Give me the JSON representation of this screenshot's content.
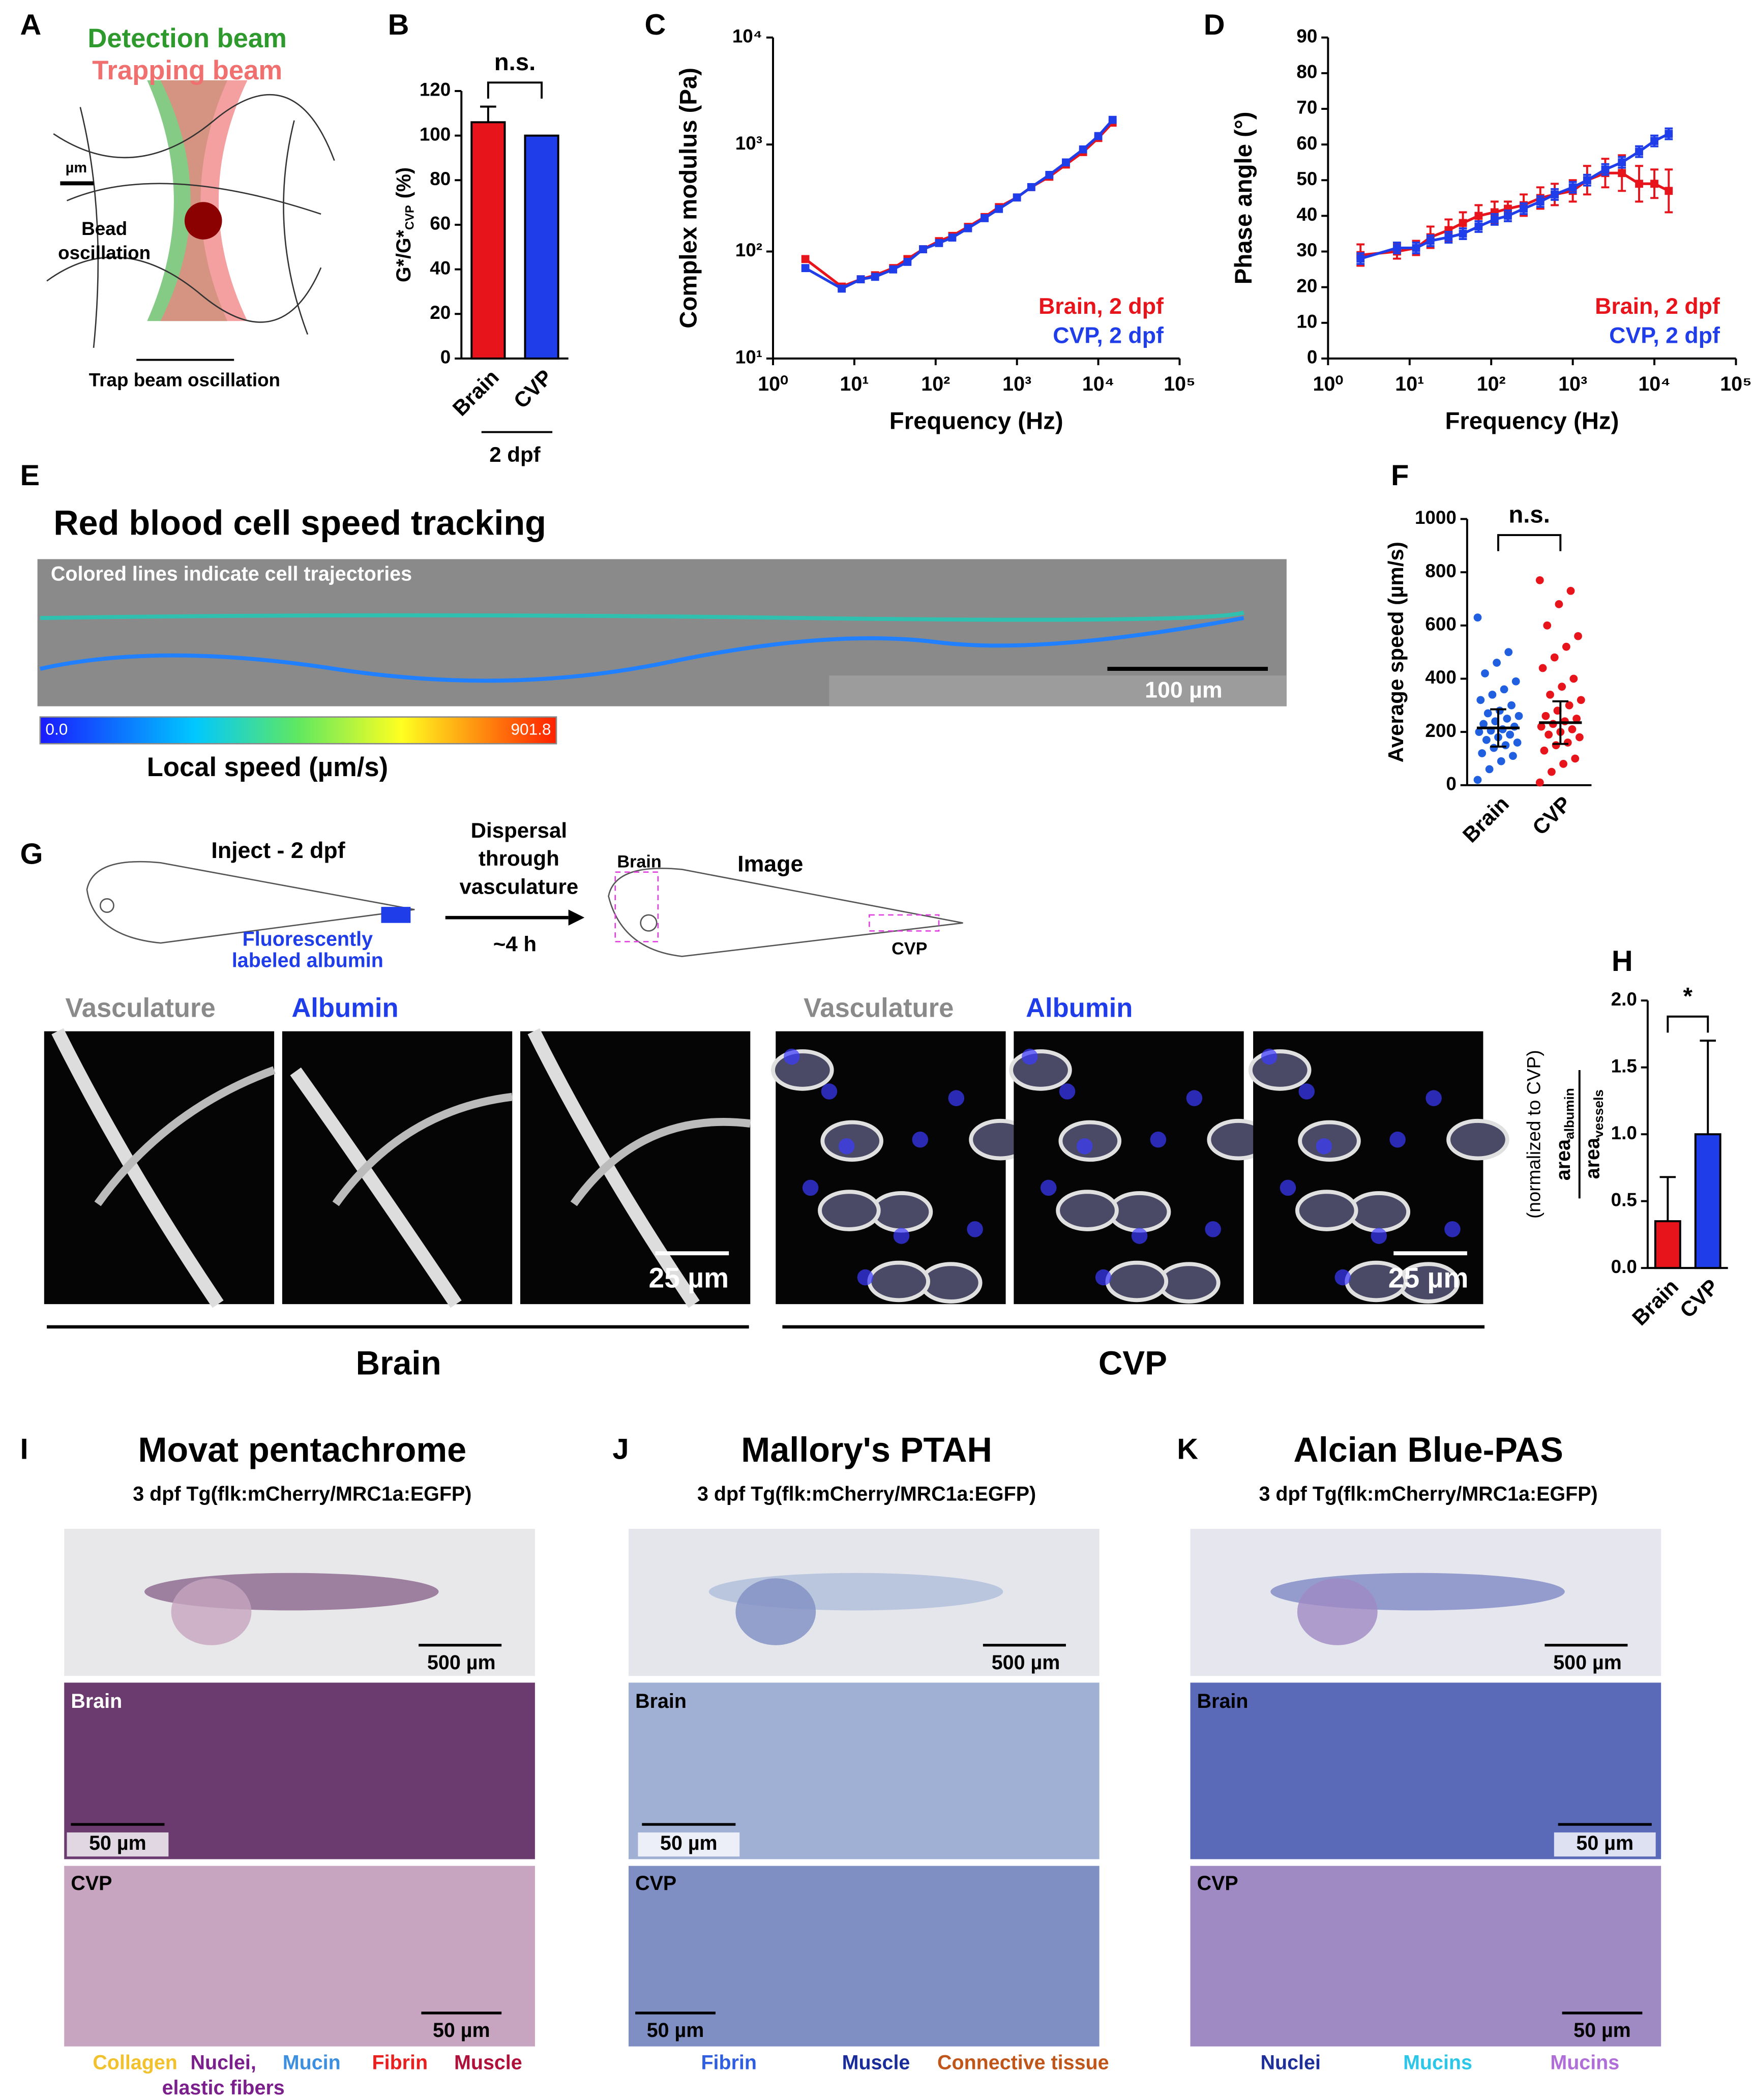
{
  "panel_labels": [
    "A",
    "B",
    "C",
    "D",
    "E",
    "F",
    "G",
    "H",
    "I",
    "J",
    "K"
  ],
  "panel_a": {
    "detection_beam": "Detection beam",
    "trapping_beam": "Trapping beam",
    "scale": "µm",
    "bead": [
      "Bead",
      "oscillation"
    ],
    "trap_oscillation": "Trap beam oscillation"
  },
  "panel_e": {
    "title": "Red blood cell speed tracking",
    "overlay": "Colored lines indicate cell trajectories",
    "scale_bar": "100 µm",
    "colorbar": {
      "min": {
        "value": 0,
        "label": "0.0"
      },
      "max": 901.8
    },
    "colorbar_label": "Local speed (µm/s)"
  },
  "panel_g": {
    "inject": "Inject - 2 dpf",
    "albumin_label": [
      "Fluorescently",
      "labeled albumin"
    ],
    "dispersal": [
      "Dispersal",
      "through",
      "vasculature"
    ],
    "time": "~4 h",
    "image": "Image",
    "roi_brain": "Brain",
    "roi_cvp": "CVP",
    "channel_vasculature": "Vasculature",
    "channel_albumin": "Albumin",
    "scale_bar": "25 µm",
    "group_brain": "Brain",
    "group_cvp": "CVP"
  },
  "histology": [
    {
      "title": "Movat pentachrome",
      "subtitle": "3 dpf Tg(flk:mCherry/MRC1a:EGFP)",
      "scale_whole": "500 µm",
      "region_brain": "Brain",
      "scale_brain": "50 µm",
      "region_cvp": "CVP",
      "scale_cvp": "50 µm",
      "legend": [
        {
          "text": "Collagen",
          "color": "#f2c12e"
        },
        {
          "text": [
            "Nuclei,",
            "elastic fibers"
          ],
          "color": "#7b1f8c"
        },
        {
          "text": "Mucin",
          "color": "#3d8fe0"
        },
        {
          "text": "Fibrin",
          "color": "#e8201f"
        },
        {
          "text": "Muscle",
          "color": "#b0113a"
        }
      ]
    },
    {
      "title": "Mallory's PTAH",
      "subtitle": "3 dpf Tg(flk:mCherry/MRC1a:EGFP)",
      "scale_whole": "500 µm",
      "region_brain": "Brain",
      "scale_brain": "50 µm",
      "region_cvp": "CVP",
      "scale_cvp": "50 µm",
      "legend": [
        {
          "text": "Fibrin",
          "color": "#2f5fe0"
        },
        {
          "text": "Muscle",
          "color": "#1a2b9a"
        },
        {
          "text": "Connective tissue",
          "color": "#c0561a"
        }
      ]
    },
    {
      "title": "Alcian Blue-PAS",
      "subtitle": "3 dpf Tg(flk:mCherry/MRC1a:EGFP)",
      "scale_whole": "500 µm",
      "region_brain": "Brain",
      "scale_brain": "50 µm",
      "region_cvp": "CVP",
      "scale_cvp": "50 µm",
      "legend": [
        {
          "text": "Nuclei",
          "color": "#1f2f9a"
        },
        {
          "text": "Mucins",
          "color": "#2cc6e8"
        },
        {
          "text": "Mucins",
          "color": "#b06fd8"
        }
      ]
    }
  ],
  "chart_data": [
    {
      "type": "bar",
      "ylabel": {
        "main": "G*/G*",
        "sub": "CVP",
        "unit": "(%)"
      },
      "categories": [
        "Brain",
        "CVP"
      ],
      "values": [
        106,
        100
      ],
      "errors": [
        7,
        null
      ],
      "colors": [
        "#e8141b",
        "#1f3de8"
      ],
      "ylim": [
        0,
        120
      ],
      "yticks": [
        0,
        20,
        40,
        60,
        80,
        100,
        120
      ],
      "annotation": "n.s.",
      "group_label": "2 dpf"
    },
    {
      "type": "line",
      "xlabel": "Frequency (Hz)",
      "ylabel": "Complex modulus (Pa)",
      "x": [
        2.5,
        7,
        12,
        18,
        30,
        45,
        70,
        110,
        160,
        250,
        400,
        600,
        1000,
        1500,
        2500,
        4000,
        6500,
        10000,
        15000
      ],
      "series": [
        {
          "name": "Brain, 2 dpf",
          "color": "#e8141b",
          "values": [
            85,
            47,
            55,
            60,
            70,
            85,
            105,
            125,
            140,
            170,
            210,
            260,
            320,
            400,
            500,
            650,
            850,
            1150,
            1600
          ]
        },
        {
          "name": "CVP, 2 dpf",
          "color": "#1f3de8",
          "values": [
            70,
            45,
            55,
            58,
            68,
            80,
            105,
            120,
            135,
            165,
            205,
            250,
            320,
            400,
            520,
            680,
            900,
            1200,
            1700
          ]
        }
      ],
      "xlim": [
        1,
        100000
      ],
      "xticks": [
        {
          "value": 1,
          "label": "10⁰"
        },
        {
          "value": 10,
          "label": "10¹"
        },
        {
          "value": 100,
          "label": "10²"
        },
        {
          "value": 1000,
          "label": "10³"
        },
        {
          "value": 10000,
          "label": "10⁴"
        },
        {
          "value": 100000,
          "label": "10⁵"
        }
      ],
      "ylim": [
        10,
        10000
      ],
      "yticks": [
        {
          "value": 10,
          "label": "10¹"
        },
        {
          "value": 100,
          "label": "10²"
        },
        {
          "value": 1000,
          "label": "10³"
        },
        {
          "value": 10000,
          "label": "10⁴"
        }
      ],
      "log_x": true,
      "log_y": true
    },
    {
      "type": "line",
      "xlabel": "Frequency (Hz)",
      "ylabel": "Phase angle (°)",
      "x": [
        2.5,
        7,
        12,
        18,
        30,
        45,
        70,
        110,
        160,
        250,
        400,
        600,
        1000,
        1500,
        2500,
        4000,
        6500,
        10000,
        15000
      ],
      "series": [
        {
          "name": "Brain, 2 dpf",
          "color": "#e8141b",
          "values": [
            29,
            30,
            31,
            34,
            36,
            38,
            40,
            41,
            42,
            43,
            45,
            46,
            47,
            50,
            52,
            52,
            49,
            49,
            47
          ],
          "errors": [
            3,
            2,
            2,
            3,
            3,
            3,
            3,
            3,
            2,
            3,
            3,
            3,
            3,
            4,
            4,
            5,
            5,
            4,
            6
          ]
        },
        {
          "name": "CVP, 2 dpf",
          "color": "#1f3de8",
          "values": [
            28,
            31,
            31,
            33,
            34,
            35,
            37,
            39,
            40,
            42,
            44,
            46,
            48,
            50,
            53,
            55,
            58,
            61,
            63
          ],
          "errors": [
            1.5,
            1.5,
            1.5,
            1.5,
            1.5,
            1.5,
            1.5,
            1.5,
            1.5,
            1.5,
            1.5,
            1.5,
            1.5,
            1.5,
            1.5,
            1.5,
            1.5,
            1.5,
            1.5
          ]
        }
      ],
      "xlim": [
        1,
        100000
      ],
      "xticks": [
        {
          "value": 1,
          "label": "10⁰"
        },
        {
          "value": 10,
          "label": "10¹"
        },
        {
          "value": 100,
          "label": "10²"
        },
        {
          "value": 1000,
          "label": "10³"
        },
        {
          "value": 10000,
          "label": "10⁴"
        },
        {
          "value": 100000,
          "label": "10⁵"
        }
      ],
      "ylim": [
        0,
        90
      ],
      "yticks": [
        0,
        10,
        20,
        30,
        40,
        50,
        60,
        70,
        80,
        90
      ],
      "log_x": true,
      "log_y": false
    },
    {
      "type": "strip",
      "ylabel": "Average speed (µm/s)",
      "categories": [
        "Brain",
        "CVP"
      ],
      "values": [
        215,
        235
      ],
      "errors": [
        70,
        80
      ],
      "points": [
        [
          20,
          60,
          90,
          110,
          120,
          140,
          150,
          160,
          170,
          180,
          190,
          200,
          205,
          210,
          220,
          230,
          240,
          250,
          260,
          270,
          280,
          300,
          320,
          340,
          360,
          390,
          420,
          460,
          500,
          630
        ],
        [
          10,
          50,
          80,
          100,
          130,
          150,
          160,
          180,
          190,
          200,
          210,
          220,
          230,
          240,
          250,
          260,
          280,
          300,
          320,
          340,
          370,
          400,
          440,
          480,
          520,
          560,
          600,
          680,
          730,
          770
        ]
      ],
      "colors": [
        "#1f5fe0",
        "#e8141b"
      ],
      "ylim": [
        0,
        1000
      ],
      "yticks": [
        0,
        200,
        400,
        600,
        800,
        1000
      ],
      "annotation": "n.s."
    },
    {
      "type": "bar",
      "ylabel": {
        "num": "area",
        "num_sub": "albumin",
        "den": "area",
        "den_sub": "vessels",
        "note": "(normalized to CVP)"
      },
      "categories": [
        "Brain",
        "CVP"
      ],
      "values": [
        0.35,
        1.0
      ],
      "errors": [
        0.33,
        0.7
      ],
      "colors": [
        "#e8141b",
        "#1f3de8"
      ],
      "ylim": [
        0,
        2
      ],
      "yticks": [
        {
          "value": 0,
          "label": "0.0"
        },
        0.5,
        {
          "value": 1,
          "label": "1.0"
        },
        1.5,
        {
          "value": 2,
          "label": "2.0"
        }
      ],
      "annotation": "*"
    }
  ]
}
